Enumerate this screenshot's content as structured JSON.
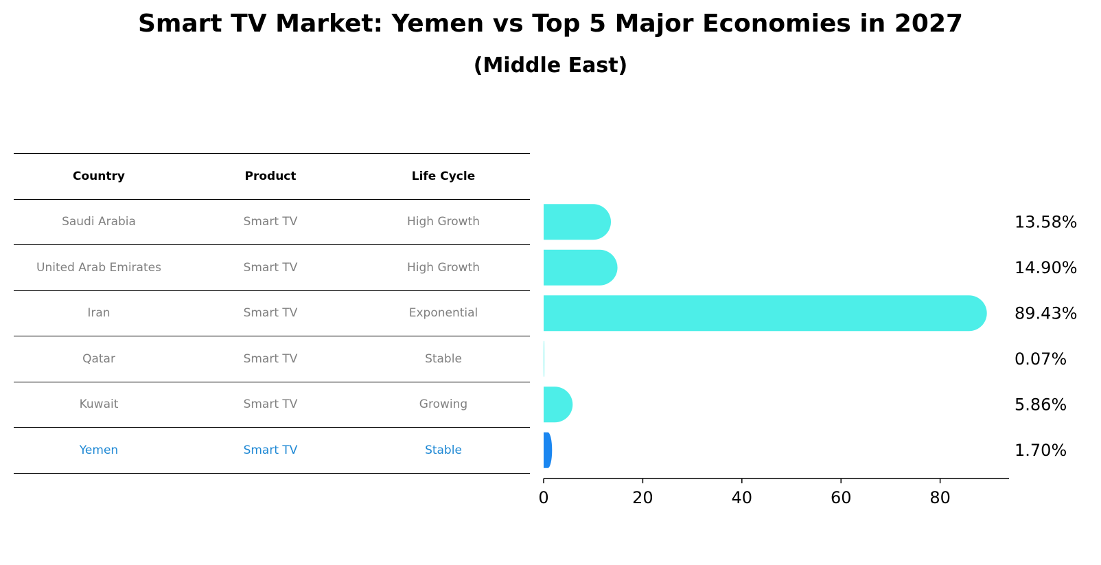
{
  "title": "Smart TV Market: Yemen vs Top 5 Major Economies in 2027",
  "subtitle": "(Middle East)",
  "table": {
    "headers": [
      "Country",
      "Product",
      "Life Cycle"
    ],
    "rows": [
      [
        "Saudi Arabia",
        "Smart TV",
        "High Growth"
      ],
      [
        "United Arab Emirates",
        "Smart TV",
        "High Growth"
      ],
      [
        "Iran",
        "Smart TV",
        "Exponential"
      ],
      [
        "Qatar",
        "Smart TV",
        "Stable"
      ],
      [
        "Kuwait",
        "Smart TV",
        "Growing"
      ],
      [
        "Yemen",
        "Smart TV",
        "Stable"
      ]
    ],
    "highlight_row": 5,
    "highlight_color": "#1e88d4"
  },
  "chart_data": {
    "type": "bar",
    "orientation": "horizontal",
    "categories": [
      "Saudi Arabia",
      "United Arab Emirates",
      "Iran",
      "Qatar",
      "Kuwait",
      "Yemen"
    ],
    "values": [
      13.58,
      14.9,
      89.43,
      0.07,
      5.86,
      1.7
    ],
    "value_labels": [
      "13.58%",
      "14.90%",
      "89.43%",
      "0.07%",
      "5.86%",
      "1.70%"
    ],
    "colors": [
      "#4deee8",
      "#4deee8",
      "#4deee8",
      "#4deee8",
      "#4deee8",
      "#1a86f0"
    ],
    "xlim": [
      0,
      93.9
    ],
    "xticks": [
      0,
      20,
      40,
      60,
      80
    ],
    "title": "Smart TV Market: Yemen vs Top 5 Major Economies in 2027",
    "xlabel": "",
    "ylabel": "",
    "grid": false
  }
}
